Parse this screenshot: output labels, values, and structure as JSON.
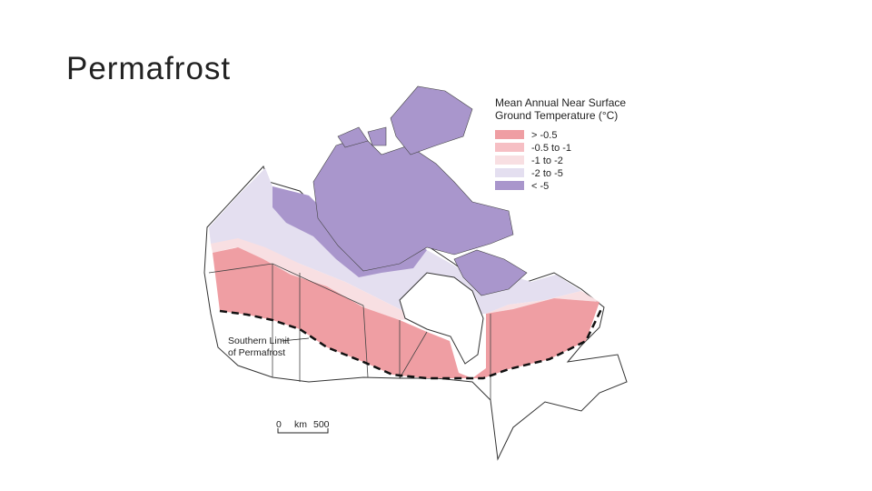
{
  "title": "Permafrost",
  "map": {
    "legend": {
      "title_lines": [
        "Mean Annual Near Surface",
        "Ground Temperature (°C)"
      ],
      "items": [
        "> -0.5",
        "-0.5 to -1",
        "-1 to -2",
        "-2 to -5",
        "< -5"
      ]
    },
    "annotation_lines": [
      "Southern Limit",
      "of Permafrost"
    ],
    "scale": {
      "start": "0",
      "unit": "km",
      "end": "500"
    }
  }
}
